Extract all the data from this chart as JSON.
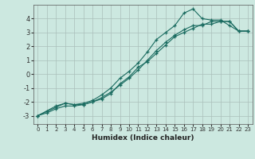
{
  "xlabel": "Humidex (Indice chaleur)",
  "bg_color": "#cce8e0",
  "grid_color": "#aabfba",
  "line_color": "#1a6b60",
  "xlim": [
    -0.5,
    23.5
  ],
  "ylim": [
    -3.6,
    5.0
  ],
  "yticks": [
    -3,
    -2,
    -1,
    0,
    1,
    2,
    3,
    4
  ],
  "xticks": [
    0,
    1,
    2,
    3,
    4,
    5,
    6,
    7,
    8,
    9,
    10,
    11,
    12,
    13,
    14,
    15,
    16,
    17,
    18,
    19,
    20,
    21,
    22,
    23
  ],
  "line1_x": [
    0,
    1,
    2,
    3,
    4,
    5,
    6,
    7,
    8,
    9,
    10,
    11,
    12,
    13,
    14,
    15,
    16,
    17,
    18,
    19,
    20,
    21,
    22,
    23
  ],
  "line1_y": [
    -3.0,
    -2.8,
    -2.5,
    -2.3,
    -2.3,
    -2.2,
    -2.0,
    -1.7,
    -1.3,
    -0.8,
    -0.3,
    0.3,
    1.0,
    1.7,
    2.3,
    2.8,
    3.2,
    3.5,
    3.5,
    3.8,
    3.8,
    3.8,
    3.1,
    3.1
  ],
  "line2_x": [
    0,
    1,
    2,
    3,
    4,
    5,
    6,
    7,
    8,
    9,
    10,
    11,
    12,
    13,
    14,
    15,
    16,
    17,
    18,
    19,
    20,
    21,
    22,
    23
  ],
  "line2_y": [
    -3.0,
    -2.7,
    -2.4,
    -2.1,
    -2.2,
    -2.1,
    -1.9,
    -1.5,
    -1.0,
    -0.3,
    0.2,
    0.8,
    1.6,
    2.5,
    3.0,
    3.5,
    4.4,
    4.7,
    4.0,
    3.9,
    3.9,
    3.5,
    3.1,
    3.1
  ],
  "line3_x": [
    0,
    2,
    3,
    4,
    5,
    6,
    7,
    8,
    9,
    10,
    11,
    12,
    13,
    14,
    15,
    16,
    17,
    18,
    19,
    20,
    21,
    22,
    23
  ],
  "line3_y": [
    -3.0,
    -2.3,
    -2.1,
    -2.2,
    -2.2,
    -2.0,
    -1.8,
    -1.4,
    -0.7,
    -0.2,
    0.5,
    0.9,
    1.5,
    2.1,
    2.7,
    3.0,
    3.3,
    3.6,
    3.6,
    3.8,
    3.8,
    3.1,
    3.1
  ]
}
